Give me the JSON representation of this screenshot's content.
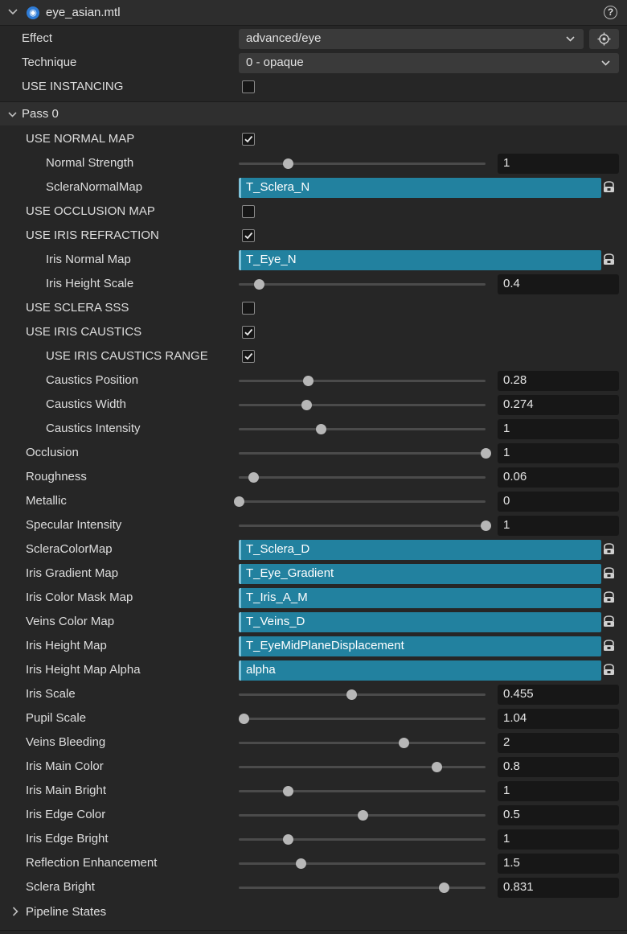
{
  "header": {
    "title": "eye_asian.mtl",
    "help_label": "?"
  },
  "effect": {
    "label": "Effect",
    "value": "advanced/eye"
  },
  "technique": {
    "label": "Technique",
    "value": "0 - opaque"
  },
  "instancing": {
    "label": "USE INSTANCING",
    "checked": false
  },
  "pass": {
    "label": "Pass 0"
  },
  "rows": [
    {
      "kind": "check",
      "label": "USE NORMAL MAP",
      "level": 1,
      "checked": true
    },
    {
      "kind": "slider",
      "label": "Normal Strength",
      "level": 2,
      "value": "1",
      "fraction": 0.2
    },
    {
      "kind": "asset",
      "label": "ScleraNormalMap",
      "level": 2,
      "value": "T_Sclera_N"
    },
    {
      "kind": "check",
      "label": "USE OCCLUSION MAP",
      "level": 1,
      "checked": false
    },
    {
      "kind": "check",
      "label": "USE IRIS REFRACTION",
      "level": 1,
      "checked": true
    },
    {
      "kind": "asset",
      "label": "Iris Normal Map",
      "level": 2,
      "value": "T_Eye_N"
    },
    {
      "kind": "slider",
      "label": "Iris Height Scale",
      "level": 2,
      "value": "0.4",
      "fraction": 0.08
    },
    {
      "kind": "check",
      "label": "USE SCLERA SSS",
      "level": 1,
      "checked": false
    },
    {
      "kind": "check",
      "label": "USE IRIS CAUSTICS",
      "level": 1,
      "checked": true
    },
    {
      "kind": "check",
      "label": "USE IRIS CAUSTICS RANGE",
      "level": 2,
      "checked": true
    },
    {
      "kind": "slider",
      "label": "Caustics Position",
      "level": 2,
      "value": "0.28",
      "fraction": 0.28
    },
    {
      "kind": "slider",
      "label": "Caustics Width",
      "level": 2,
      "value": "0.274",
      "fraction": 0.274
    },
    {
      "kind": "slider",
      "label": "Caustics Intensity",
      "level": 2,
      "value": "1",
      "fraction": 0.333
    },
    {
      "kind": "slider",
      "label": "Occlusion",
      "level": 1,
      "value": "1",
      "fraction": 1.0
    },
    {
      "kind": "slider",
      "label": "Roughness",
      "level": 1,
      "value": "0.06",
      "fraction": 0.06
    },
    {
      "kind": "slider",
      "label": "Metallic",
      "level": 1,
      "value": "0",
      "fraction": 0.0
    },
    {
      "kind": "slider",
      "label": "Specular Intensity",
      "level": 1,
      "value": "1",
      "fraction": 1.0
    },
    {
      "kind": "asset",
      "label": "ScleraColorMap",
      "level": 1,
      "value": "T_Sclera_D"
    },
    {
      "kind": "asset",
      "label": "Iris Gradient Map",
      "level": 1,
      "value": "T_Eye_Gradient"
    },
    {
      "kind": "asset",
      "label": "Iris Color Mask Map",
      "level": 1,
      "value": "T_Iris_A_M"
    },
    {
      "kind": "asset",
      "label": "Veins Color Map",
      "level": 1,
      "value": "T_Veins_D"
    },
    {
      "kind": "asset",
      "label": "Iris Height Map",
      "level": 1,
      "value": "T_EyeMidPlaneDisplacement"
    },
    {
      "kind": "asset",
      "label": "Iris Height Map Alpha",
      "level": 1,
      "value": "alpha"
    },
    {
      "kind": "slider",
      "label": "Iris Scale",
      "level": 1,
      "value": "0.455",
      "fraction": 0.455
    },
    {
      "kind": "slider",
      "label": "Pupil Scale",
      "level": 1,
      "value": "1.04",
      "fraction": 0.02
    },
    {
      "kind": "slider",
      "label": "Veins Bleeding",
      "level": 1,
      "value": "2",
      "fraction": 0.667
    },
    {
      "kind": "slider",
      "label": "Iris Main Color",
      "level": 1,
      "value": "0.8",
      "fraction": 0.8
    },
    {
      "kind": "slider",
      "label": "Iris Main Bright",
      "level": 1,
      "value": "1",
      "fraction": 0.2
    },
    {
      "kind": "slider",
      "label": "Iris Edge Color",
      "level": 1,
      "value": "0.5",
      "fraction": 0.5
    },
    {
      "kind": "slider",
      "label": "Iris Edge Bright",
      "level": 1,
      "value": "1",
      "fraction": 0.2
    },
    {
      "kind": "slider",
      "label": "Reflection Enhancement",
      "level": 1,
      "value": "1.5",
      "fraction": 0.25
    },
    {
      "kind": "slider",
      "label": "Sclera Bright",
      "level": 1,
      "value": "0.831",
      "fraction": 0.831
    }
  ],
  "pipeline": {
    "label": "Pipeline States"
  },
  "colors": {
    "asset_bg": "#22819f",
    "asset_edge": "#7ec2d9",
    "panel_bg": "#262626"
  }
}
